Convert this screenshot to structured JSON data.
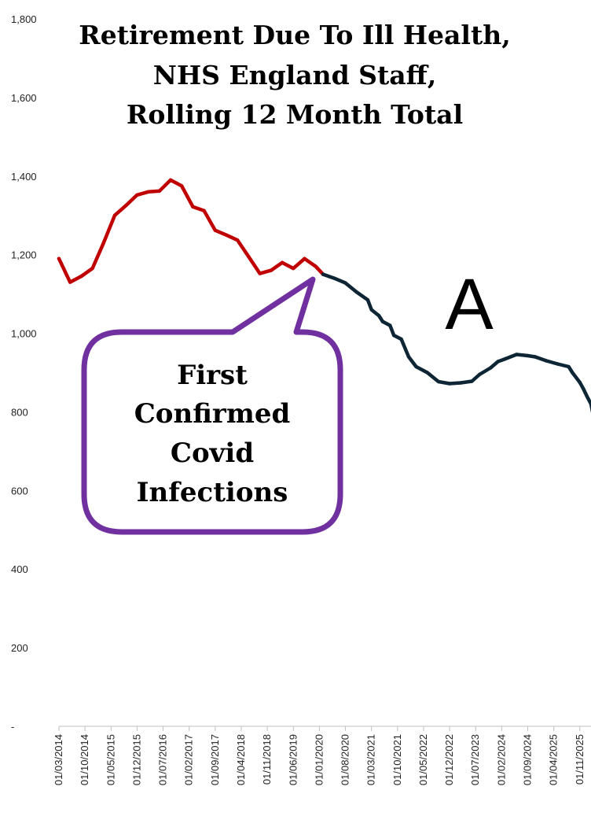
{
  "chart_data": {
    "type": "line",
    "title_lines": [
      "Retirement Due To Ill Health,",
      "NHS England Staff,",
      "Rolling 12 Month Total"
    ],
    "xlabel": "",
    "ylabel": "",
    "ylim": [
      0,
      1800
    ],
    "y_ticks": [
      {
        "value": 1800,
        "label": "1,800"
      },
      {
        "value": 1600,
        "label": "1,600"
      },
      {
        "value": 1400,
        "label": "1,400"
      },
      {
        "value": 1200,
        "label": "1,200"
      },
      {
        "value": 1000,
        "label": "1,000"
      },
      {
        "value": 800,
        "label": "800"
      },
      {
        "value": 600,
        "label": "600"
      },
      {
        "value": 400,
        "label": "400"
      },
      {
        "value": 200,
        "label": "200"
      },
      {
        "value": 0,
        "label": "-"
      }
    ],
    "x_axis": {
      "start": "2014-03",
      "end": "2026-02"
    },
    "x_tick_labels": [
      "01/03/2014",
      "01/10/2014",
      "01/05/2015",
      "01/12/2015",
      "01/07/2016",
      "01/02/2017",
      "01/09/2017",
      "01/04/2018",
      "01/11/2018",
      "01/06/2019",
      "01/01/2020",
      "01/08/2020",
      "01/03/2021",
      "01/10/2021",
      "01/05/2022",
      "01/12/2022",
      "01/07/2023",
      "01/02/2024",
      "01/09/2024",
      "01/04/2025",
      "01/11/2025"
    ],
    "grid": false,
    "series": [
      {
        "color": "#c00000",
        "points": [
          [
            "2014-03",
            1190
          ],
          [
            "2014-06",
            1130
          ],
          [
            "2014-09",
            1145
          ],
          [
            "2014-12",
            1165
          ],
          [
            "2015-03",
            1230
          ],
          [
            "2015-06",
            1300
          ],
          [
            "2015-09",
            1325
          ],
          [
            "2015-12",
            1352
          ],
          [
            "2016-03",
            1360
          ],
          [
            "2016-06",
            1362
          ],
          [
            "2016-09",
            1390
          ],
          [
            "2016-12",
            1375
          ],
          [
            "2017-03",
            1322
          ],
          [
            "2017-06",
            1312
          ],
          [
            "2017-09",
            1262
          ],
          [
            "2017-12",
            1250
          ],
          [
            "2018-03",
            1237
          ],
          [
            "2018-06",
            1195
          ],
          [
            "2018-09",
            1152
          ],
          [
            "2018-12",
            1160
          ],
          [
            "2019-03",
            1180
          ],
          [
            "2019-06",
            1165
          ],
          [
            "2019-09",
            1190
          ],
          [
            "2019-12",
            1170
          ],
          [
            "2020-02",
            1150
          ]
        ]
      },
      {
        "color": "#0d2534",
        "points": [
          [
            "2020-02",
            1150
          ],
          [
            "2020-05",
            1140
          ],
          [
            "2020-08",
            1128
          ],
          [
            "2020-11",
            1105
          ],
          [
            "2021-02",
            1085
          ],
          [
            "2021-03",
            1060
          ],
          [
            "2021-05",
            1045
          ],
          [
            "2021-06",
            1030
          ],
          [
            "2021-08",
            1020
          ],
          [
            "2021-09",
            995
          ],
          [
            "2021-11",
            985
          ],
          [
            "2022-01",
            940
          ],
          [
            "2022-03",
            915
          ],
          [
            "2022-06",
            900
          ],
          [
            "2022-09",
            877
          ],
          [
            "2022-12",
            872
          ],
          [
            "2023-03",
            874
          ],
          [
            "2023-06",
            878
          ],
          [
            "2023-08",
            895
          ],
          [
            "2023-11",
            912
          ],
          [
            "2024-01",
            928
          ],
          [
            "2024-03",
            935
          ],
          [
            "2024-06",
            946
          ],
          [
            "2024-09",
            943
          ],
          [
            "2024-11",
            940
          ],
          [
            "2025-02",
            930
          ],
          [
            "2025-05",
            922
          ],
          [
            "2025-08",
            915
          ],
          [
            "2025-09",
            900
          ],
          [
            "2025-11",
            875
          ],
          [
            "2025-12",
            858
          ],
          [
            "2026-01",
            838
          ],
          [
            "2026-02",
            820
          ],
          [
            "2026-02-20",
            790
          ]
        ]
      }
    ],
    "annotations": {
      "callout_lines": [
        "First",
        "Confirmed",
        "Covid",
        "Infections"
      ],
      "callout_color": "#7030a0",
      "callout_points_to": [
        "2020-02",
        1150
      ],
      "panel_letter": "A"
    }
  }
}
